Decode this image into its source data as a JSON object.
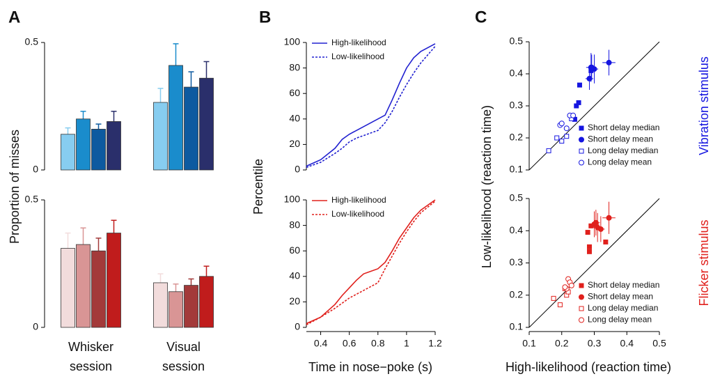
{
  "panel_labels": [
    "A",
    "B",
    "C"
  ],
  "chart_data": [
    {
      "type": "bar",
      "ylabel": "Proportion of misses",
      "categories": [
        null,
        null
      ],
      "ylim": [
        0,
        0.5
      ],
      "yticks": [
        0,
        0.5
      ],
      "series": [
        {
          "color": "#87cdf0",
          "values": [
            0.14,
            0.265
          ],
          "errors": [
            0.025,
            0.055
          ]
        },
        {
          "color": "#1a8ccc",
          "values": [
            0.2,
            0.41
          ],
          "errors": [
            0.03,
            0.085
          ]
        },
        {
          "color": "#0d5aa0",
          "values": [
            0.16,
            0.325
          ],
          "errors": [
            0.02,
            0.06
          ]
        },
        {
          "color": "#2a2f6b",
          "values": [
            0.19,
            0.36
          ],
          "errors": [
            0.04,
            0.065
          ]
        }
      ]
    },
    {
      "type": "bar",
      "categories": [
        "Whisker session",
        "Visual session"
      ],
      "ylim": [
        0,
        0.5
      ],
      "yticks": [
        0,
        0.5
      ],
      "series": [
        {
          "color": "#f2dcdc",
          "values": [
            0.31,
            0.175
          ],
          "errors": [
            0.06,
            0.035
          ]
        },
        {
          "color": "#d99595",
          "values": [
            0.325,
            0.14
          ],
          "errors": [
            0.065,
            0.03
          ]
        },
        {
          "color": "#a33a3a",
          "values": [
            0.3,
            0.165
          ],
          "errors": [
            0.05,
            0.025
          ]
        },
        {
          "color": "#c01c1c",
          "values": [
            0.37,
            0.2
          ],
          "errors": [
            0.05,
            0.04
          ]
        }
      ]
    },
    {
      "type": "line",
      "ylabel": "Percentile",
      "legend": "upper left",
      "x": [
        0.3,
        0.4,
        0.5,
        0.55,
        0.6,
        0.65,
        0.7,
        0.75,
        0.8,
        0.85,
        0.9,
        0.95,
        1.0,
        1.05,
        1.1,
        1.2
      ],
      "xlim": [
        0.3,
        1.2
      ],
      "ylim": [
        0,
        100
      ],
      "yticks": [
        0,
        20,
        40,
        60,
        80,
        100
      ],
      "series": [
        {
          "name": "High-likelihood",
          "color": "#2020d0",
          "dash": false,
          "values": [
            3,
            8,
            17,
            24,
            28,
            31,
            34,
            37,
            40,
            43,
            55,
            68,
            80,
            88,
            93,
            99
          ]
        },
        {
          "name": "Low-likelihood",
          "color": "#2020d0",
          "dash": true,
          "values": [
            2,
            6,
            13,
            17,
            22,
            25,
            27,
            29,
            31,
            37,
            46,
            57,
            67,
            76,
            84,
            97
          ]
        }
      ]
    },
    {
      "type": "line",
      "xlabel": "Time in nose−poke (s)",
      "legend": "upper left",
      "x": [
        0.3,
        0.4,
        0.5,
        0.55,
        0.6,
        0.65,
        0.7,
        0.75,
        0.8,
        0.85,
        0.9,
        0.95,
        1.0,
        1.05,
        1.1,
        1.2
      ],
      "xlim": [
        0.3,
        1.2
      ],
      "xticks": [
        0.4,
        0.6,
        0.8,
        1,
        1.2
      ],
      "ylim": [
        0,
        100
      ],
      "yticks": [
        0,
        20,
        40,
        60,
        80,
        100
      ],
      "series": [
        {
          "name": "High-likelihood",
          "color": "#e0201c",
          "dash": false,
          "values": [
            3,
            8,
            18,
            25,
            31,
            37,
            42,
            44,
            46,
            51,
            60,
            70,
            78,
            86,
            92,
            100
          ]
        },
        {
          "name": "Low-likelihood",
          "color": "#e0201c",
          "dash": true,
          "values": [
            2,
            8,
            15,
            19,
            23,
            26,
            29,
            32,
            35,
            46,
            56,
            66,
            75,
            83,
            90,
            99
          ]
        }
      ]
    },
    {
      "type": "scatter",
      "ylabel": "Low-likelihood (reaction time)",
      "side_label": "Vibration stimulus",
      "diagonal": true,
      "legend": "lower right",
      "xlim": [
        0.1,
        0.5
      ],
      "ylim": [
        0.1,
        0.5
      ],
      "yticks": [
        0.1,
        0.2,
        0.3,
        0.4,
        0.5
      ],
      "series": [
        {
          "name": "Short delay median",
          "color": "#1515e0",
          "marker": "square",
          "filled": true,
          "x": [
            0.255,
            0.245,
            0.252,
            0.24,
            0.29
          ],
          "y": [
            0.365,
            0.3,
            0.31,
            0.258,
            0.41
          ]
        },
        {
          "name": "Short delay mean",
          "color": "#1515e0",
          "marker": "circle",
          "filled": true,
          "x": [
            0.29,
            0.3,
            0.285,
            0.345,
            0.292
          ],
          "y": [
            0.42,
            0.415,
            0.385,
            0.435,
            0.42
          ],
          "xerr": [
            0.015,
            0.012,
            0.012,
            0.02,
            0.012
          ],
          "yerr": [
            0.045,
            0.045,
            0.035,
            0.04,
            0.04
          ]
        },
        {
          "name": "Long delay median",
          "color": "#1515e0",
          "marker": "square",
          "filled": false,
          "x": [
            0.16,
            0.185,
            0.2,
            0.215,
            0.23
          ],
          "y": [
            0.16,
            0.2,
            0.19,
            0.205,
            0.26
          ]
        },
        {
          "name": "Long delay mean",
          "color": "#1515e0",
          "marker": "circle",
          "filled": false,
          "x": [
            0.195,
            0.2,
            0.225,
            0.235,
            0.215
          ],
          "y": [
            0.24,
            0.245,
            0.27,
            0.27,
            0.23
          ]
        }
      ]
    },
    {
      "type": "scatter",
      "xlabel": "High-likelihood (reaction time)",
      "side_label": "Flicker stimulus",
      "diagonal": true,
      "legend": "lower right",
      "xlim": [
        0.1,
        0.5
      ],
      "xticks": [
        0.1,
        0.2,
        0.3,
        0.4,
        0.5
      ],
      "ylim": [
        0.1,
        0.5
      ],
      "yticks": [
        0.1,
        0.2,
        0.3,
        0.4,
        0.5
      ],
      "series": [
        {
          "name": "Short delay median",
          "color": "#e0201c",
          "marker": "square",
          "filled": true,
          "x": [
            0.28,
            0.285,
            0.285,
            0.335,
            0.29
          ],
          "y": [
            0.395,
            0.335,
            0.35,
            0.365,
            0.415
          ]
        },
        {
          "name": "Short delay mean",
          "color": "#e0201c",
          "marker": "circle",
          "filled": true,
          "x": [
            0.3,
            0.31,
            0.32,
            0.345,
            0.305
          ],
          "y": [
            0.42,
            0.41,
            0.405,
            0.44,
            0.425
          ],
          "xerr": [
            0.015,
            0.015,
            0.012,
            0.02,
            0.012
          ],
          "yerr": [
            0.04,
            0.045,
            0.04,
            0.05,
            0.04
          ]
        },
        {
          "name": "Long delay median",
          "color": "#e0201c",
          "marker": "square",
          "filled": false,
          "x": [
            0.175,
            0.195,
            0.21,
            0.215,
            0.22
          ],
          "y": [
            0.19,
            0.17,
            0.22,
            0.2,
            0.21
          ]
        },
        {
          "name": "Long delay mean",
          "color": "#e0201c",
          "marker": "circle",
          "filled": false,
          "x": [
            0.22,
            0.225,
            0.215,
            0.23,
            0.21
          ],
          "y": [
            0.25,
            0.24,
            0.22,
            0.23,
            0.225
          ]
        }
      ]
    }
  ]
}
